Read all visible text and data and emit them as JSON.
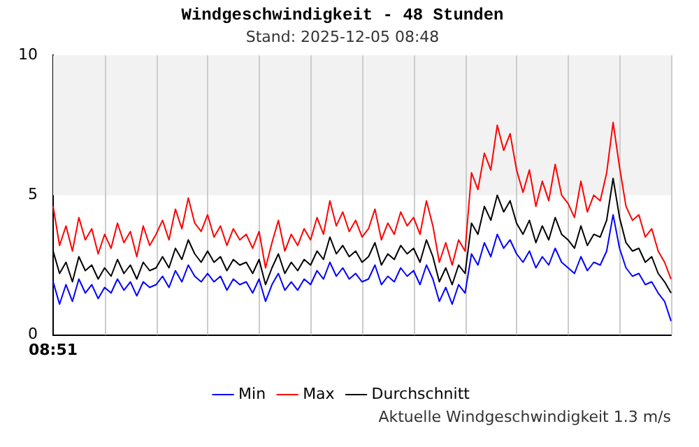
{
  "chart_data": {
    "type": "line",
    "title": "Windgeschwindigkeit - 48 Stunden",
    "subtitle": "Stand: 2025-12-05 08:48",
    "annotations": [
      "08:51",
      "Aktuelle Windgeschwindigkeit 1.3 m/s"
    ],
    "categories": [
      null,
      null,
      null,
      null,
      null,
      null,
      null,
      null,
      null,
      null,
      null,
      null,
      null,
      null,
      null,
      null,
      null,
      null,
      null,
      null,
      null,
      null,
      null,
      null,
      null,
      null,
      null,
      null,
      null,
      null,
      null,
      null,
      null,
      null,
      null,
      null,
      null,
      null,
      null,
      null,
      null,
      null,
      null,
      null,
      null,
      null,
      null,
      null,
      null,
      null,
      null,
      null,
      null,
      null,
      null,
      null,
      null,
      null,
      null,
      null,
      null,
      null,
      null,
      null,
      null,
      null,
      null,
      null,
      null,
      null,
      null,
      null,
      null,
      null,
      null,
      null,
      null,
      null,
      null,
      null,
      null,
      null,
      null,
      null,
      null,
      null,
      null,
      null,
      null,
      null,
      null,
      null,
      null,
      null,
      null,
      null,
      null
    ],
    "series": [
      {
        "name": "Min",
        "color": "#0000ff",
        "values": [
          1.9,
          1.1,
          1.8,
          1.2,
          2.0,
          1.5,
          1.8,
          1.3,
          1.7,
          1.5,
          2.0,
          1.6,
          1.9,
          1.4,
          1.9,
          1.7,
          1.8,
          2.1,
          1.7,
          2.3,
          1.9,
          2.5,
          2.1,
          1.9,
          2.2,
          1.9,
          2.1,
          1.6,
          2.0,
          1.8,
          1.9,
          1.5,
          2.0,
          1.2,
          1.8,
          2.2,
          1.6,
          1.9,
          1.6,
          2.0,
          1.8,
          2.3,
          2.0,
          2.6,
          2.1,
          2.4,
          2.0,
          2.2,
          1.9,
          2.0,
          2.5,
          1.8,
          2.1,
          1.9,
          2.4,
          2.1,
          2.3,
          1.8,
          2.5,
          2.0,
          1.2,
          1.7,
          1.1,
          1.8,
          1.5,
          2.9,
          2.5,
          3.3,
          2.8,
          3.6,
          3.1,
          3.4,
          2.9,
          2.6,
          3.0,
          2.4,
          2.8,
          2.5,
          3.1,
          2.6,
          2.4,
          2.2,
          2.8,
          2.3,
          2.6,
          2.5,
          3.0,
          4.3,
          3.1,
          2.4,
          2.1,
          2.2,
          1.8,
          1.9,
          1.5,
          1.2,
          0.5
        ]
      },
      {
        "name": "Max",
        "color": "#ff0000",
        "values": [
          4.6,
          3.2,
          3.9,
          3.0,
          4.2,
          3.4,
          3.8,
          2.9,
          3.6,
          3.1,
          4.0,
          3.3,
          3.7,
          2.8,
          3.9,
          3.2,
          3.6,
          4.1,
          3.4,
          4.5,
          3.8,
          4.9,
          4.0,
          3.7,
          4.3,
          3.5,
          3.9,
          3.2,
          3.8,
          3.4,
          3.6,
          3.1,
          3.7,
          2.4,
          3.3,
          4.1,
          3.0,
          3.6,
          3.2,
          3.8,
          3.4,
          4.2,
          3.6,
          4.8,
          3.9,
          4.4,
          3.7,
          4.1,
          3.5,
          3.8,
          4.5,
          3.4,
          4.0,
          3.6,
          4.4,
          3.9,
          4.2,
          3.6,
          4.8,
          3.9,
          2.6,
          3.3,
          2.5,
          3.4,
          3.0,
          5.8,
          5.2,
          6.5,
          5.9,
          7.5,
          6.6,
          7.2,
          5.9,
          5.1,
          5.9,
          4.6,
          5.5,
          4.8,
          6.1,
          5.0,
          4.7,
          4.2,
          5.5,
          4.4,
          5.0,
          4.8,
          5.8,
          7.6,
          6.0,
          4.6,
          4.1,
          4.3,
          3.5,
          3.8,
          3.0,
          2.6,
          2.0
        ]
      },
      {
        "name": "Durchschnitt",
        "color": "#000000",
        "values": [
          3.0,
          2.2,
          2.6,
          1.9,
          2.8,
          2.3,
          2.5,
          2.0,
          2.4,
          2.1,
          2.7,
          2.2,
          2.5,
          2.0,
          2.6,
          2.3,
          2.4,
          2.8,
          2.4,
          3.1,
          2.7,
          3.4,
          2.9,
          2.6,
          3.0,
          2.6,
          2.8,
          2.3,
          2.7,
          2.5,
          2.6,
          2.2,
          2.7,
          1.8,
          2.4,
          2.9,
          2.2,
          2.6,
          2.3,
          2.7,
          2.5,
          3.0,
          2.7,
          3.5,
          2.9,
          3.2,
          2.8,
          3.0,
          2.6,
          2.8,
          3.3,
          2.5,
          2.9,
          2.7,
          3.2,
          2.9,
          3.1,
          2.6,
          3.4,
          2.8,
          1.9,
          2.4,
          1.8,
          2.5,
          2.2,
          4.0,
          3.6,
          4.6,
          4.1,
          5.0,
          4.4,
          4.8,
          4.0,
          3.6,
          4.1,
          3.3,
          3.9,
          3.4,
          4.2,
          3.6,
          3.4,
          3.1,
          3.9,
          3.2,
          3.6,
          3.5,
          4.1,
          5.6,
          4.2,
          3.3,
          3.0,
          3.1,
          2.6,
          2.8,
          2.2,
          1.9,
          1.5
        ]
      }
    ],
    "ylim": [
      0,
      10
    ],
    "yticks": [
      0,
      5,
      10
    ],
    "bands": [
      {
        "axis": "y",
        "from": 5,
        "to": 10,
        "color": "#f2f2f2"
      }
    ],
    "grid": "x",
    "legend": "bottom",
    "marker": "none",
    "line_style": "solid"
  }
}
